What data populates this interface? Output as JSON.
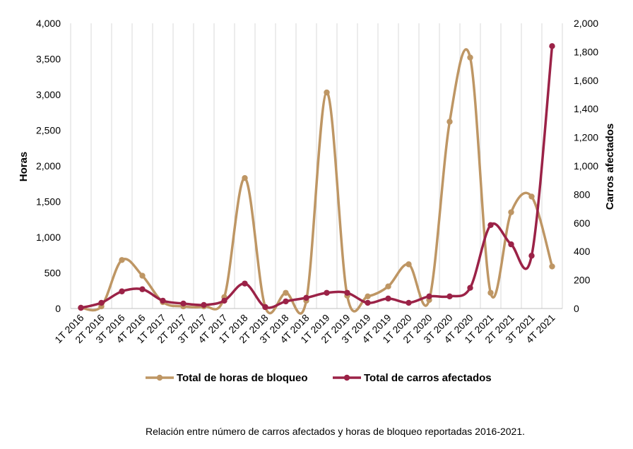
{
  "chart_data": {
    "type": "line",
    "categories": [
      "1T 2016",
      "2T 2016",
      "3T 2016",
      "4T 2016",
      "1T 2017",
      "2T 2017",
      "3T 2017",
      "4T 2017",
      "1T 2018",
      "2T 2018",
      "3T 2018",
      "4T 2018",
      "1T 2019",
      "2T 2019",
      "3T 2019",
      "4T 2019",
      "1T 2020",
      "2T 2020",
      "3T 2020",
      "4T 2020",
      "1T 2021",
      "2T 2021",
      "3T 2021",
      "4T 2021"
    ],
    "series": [
      {
        "name": "Total de horas de bloqueo",
        "axis": "left",
        "color": "#BE9664",
        "values": [
          10,
          30,
          680,
          460,
          90,
          30,
          30,
          160,
          1830,
          20,
          220,
          110,
          3030,
          180,
          170,
          310,
          620,
          120,
          2620,
          3520,
          220,
          1350,
          1570,
          590
        ]
      },
      {
        "name": "Total de carros afectados",
        "axis": "right",
        "color": "#9B2247",
        "values": [
          5,
          40,
          120,
          135,
          55,
          35,
          25,
          55,
          175,
          10,
          50,
          75,
          110,
          110,
          40,
          70,
          40,
          85,
          85,
          145,
          585,
          450,
          370,
          1840
        ]
      }
    ],
    "ylabel": "Horas",
    "y2label": "Carros afectados",
    "ylim": [
      0,
      4000
    ],
    "y2lim": [
      0,
      2000
    ],
    "yticks": [
      "0",
      "500",
      "1,000",
      "1,500",
      "2,000",
      "2,500",
      "3,000",
      "3,500",
      "4,000"
    ],
    "y2ticks": [
      "0",
      "200",
      "400",
      "600",
      "800",
      "1,000",
      "1,200",
      "1,400",
      "1,600",
      "1,800",
      "2,000"
    ],
    "grid": "vertical",
    "legend": "bottom"
  },
  "caption": "Relación entre número de carros afectados y horas de bloqueo reportadas 2016-2021."
}
